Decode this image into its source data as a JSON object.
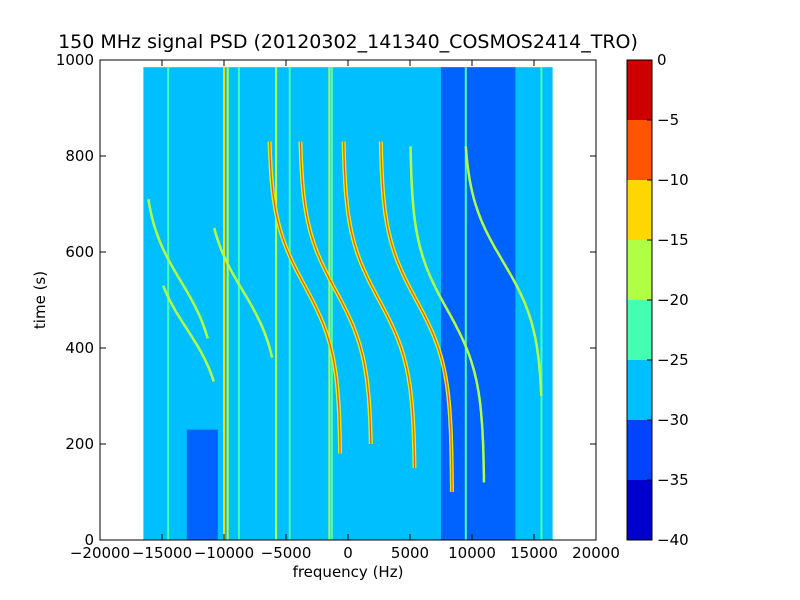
{
  "chart_data": {
    "type": "heatmap",
    "title": "150 MHz signal PSD (20120302_141340_COSMOS2414_TRO)",
    "xlabel": "frequency (Hz)",
    "ylabel": "time (s)",
    "xlim": [
      -20000,
      20000
    ],
    "ylim": [
      0,
      1000
    ],
    "xticks": [
      "−20000",
      "−15000",
      "−10000",
      "−5000",
      "0",
      "5000",
      "10000",
      "15000",
      "20000"
    ],
    "xtick_values": [
      -20000,
      -15000,
      -10000,
      -5000,
      0,
      5000,
      10000,
      15000,
      20000
    ],
    "yticks": [
      "0",
      "200",
      "400",
      "600",
      "800",
      "1000"
    ],
    "ytick_values": [
      0,
      200,
      400,
      600,
      800,
      1000
    ],
    "data_extent": {
      "f_min": -16500,
      "f_max": 16500,
      "t_min": 0,
      "t_max": 985
    },
    "colorbar": {
      "range": [
        -40,
        0
      ],
      "ticks": [
        "−40",
        "−35",
        "−30",
        "−25",
        "−20",
        "−15",
        "−10",
        "−5",
        "0"
      ],
      "tick_values": [
        -40,
        -35,
        -30,
        -25,
        -20,
        -15,
        -10,
        -5,
        0
      ],
      "levels": [
        {
          "from": -40,
          "to": -35,
          "color": "#0000cd"
        },
        {
          "from": -35,
          "to": -30,
          "color": "#0044ff"
        },
        {
          "from": -30,
          "to": -25,
          "color": "#00bfff"
        },
        {
          "from": -25,
          "to": -20,
          "color": "#44ffb0"
        },
        {
          "from": -20,
          "to": -15,
          "color": "#b0ff44"
        },
        {
          "from": -15,
          "to": -10,
          "color": "#ffd700"
        },
        {
          "from": -10,
          "to": -5,
          "color": "#ff5500"
        },
        {
          "from": -5,
          "to": 0,
          "color": "#cd0000"
        }
      ]
    },
    "background_level_db": -28,
    "low_power_bands": [
      {
        "f_from": 7500,
        "f_to": 13500,
        "level_db": -33
      },
      {
        "f_from": -13000,
        "f_to": -10500,
        "level_db": -32,
        "t_to": 230
      }
    ],
    "constant_lines": [
      {
        "f": -10000,
        "level_db": -12
      },
      {
        "f": -9700,
        "level_db": -18
      },
      {
        "f": -8800,
        "level_db": -22
      },
      {
        "f": -5800,
        "level_db": -18
      },
      {
        "f": -4700,
        "level_db": -22
      },
      {
        "f": -1500,
        "level_db": -18
      },
      {
        "f": -1300,
        "level_db": -22
      },
      {
        "f": -14500,
        "level_db": -25
      },
      {
        "f": 9500,
        "level_db": -25
      },
      {
        "f": 15600,
        "level_db": -25
      }
    ],
    "doppler_traces": [
      {
        "center_f": -13000,
        "center_t": 440,
        "half_span_f": 3000,
        "half_span_t": 120,
        "t_range": [
          330,
          530
        ],
        "level_db": -18
      },
      {
        "center_f": -13500,
        "center_t": 540,
        "half_span_f": 3000,
        "half_span_t": 130,
        "t_range": [
          420,
          710
        ],
        "level_db": -18
      },
      {
        "center_f": -8500,
        "center_t": 520,
        "half_span_f": 3000,
        "half_span_t": 130,
        "t_range": [
          380,
          650
        ],
        "level_db": -18
      },
      {
        "center_f": -3500,
        "center_t": 530,
        "half_span_f": 2900,
        "half_span_t": 140,
        "t_range": [
          180,
          830
        ],
        "level_db": -6
      },
      {
        "center_f": -1000,
        "center_t": 520,
        "half_span_f": 2900,
        "half_span_t": 140,
        "t_range": [
          200,
          830
        ],
        "level_db": -6
      },
      {
        "center_f": 2500,
        "center_t": 500,
        "half_span_f": 2900,
        "half_span_t": 140,
        "t_range": [
          150,
          830
        ],
        "level_db": -6
      },
      {
        "center_f": 5500,
        "center_t": 500,
        "half_span_f": 2900,
        "half_span_t": 140,
        "t_range": [
          100,
          830
        ],
        "level_db": -6
      },
      {
        "center_f": 8000,
        "center_t": 480,
        "half_span_f": 3000,
        "half_span_t": 140,
        "t_range": [
          120,
          820
        ],
        "level_db": -18
      },
      {
        "center_f": 12500,
        "center_t": 580,
        "half_span_f": 3200,
        "half_span_t": 140,
        "t_range": [
          300,
          820
        ],
        "level_db": -18
      }
    ]
  }
}
